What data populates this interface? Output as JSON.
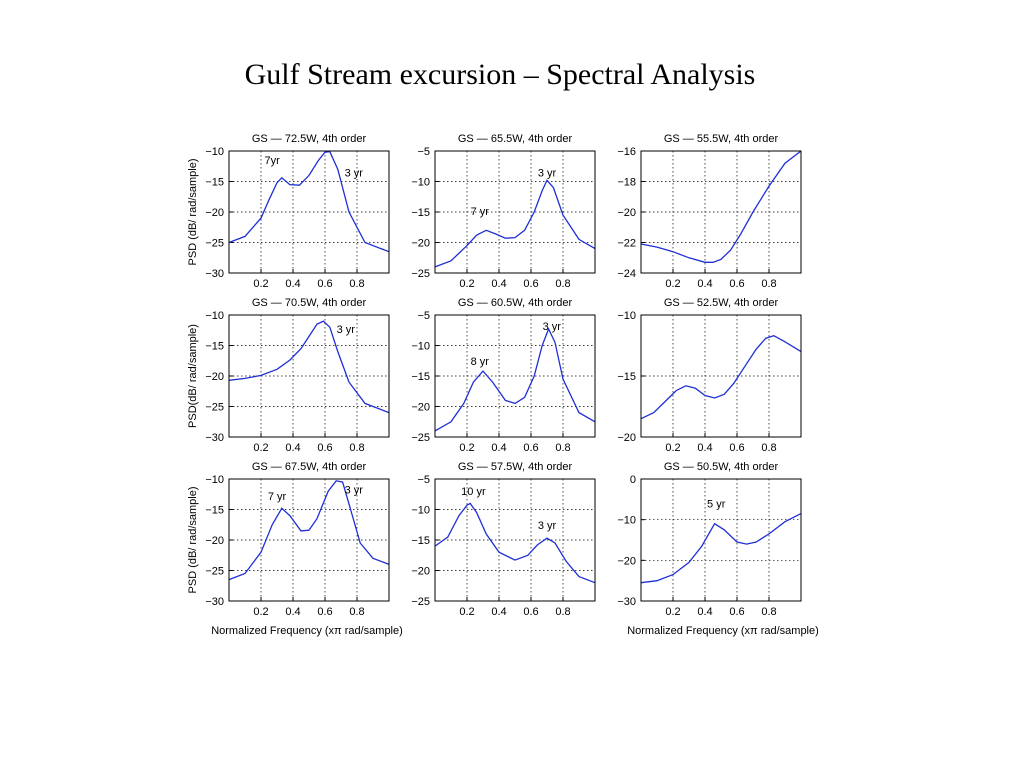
{
  "title": "Gulf Stream excursion – Spectral Analysis",
  "ylabels": [
    "PSD (dB/ rad/sample)",
    "PSD(dB/ rad/sample)",
    "PSD (dB/ rad/sample)"
  ],
  "xlabels": [
    "Normalized Frequency  (xπ rad/sample)",
    "Normalized Frequency  (xπ rad/sample)"
  ],
  "chart_data": [
    {
      "type": "line",
      "title": "GS — 72.5W, 4th order",
      "xlim": [
        0,
        1
      ],
      "ylim": [
        -30,
        -10
      ],
      "xticks": [
        0.2,
        0.4,
        0.6,
        0.8
      ],
      "xticklabels": [
        "0.2",
        "0.4",
        "0.6",
        "0.8"
      ],
      "yticks": [
        -30,
        -25,
        -20,
        -15,
        -10
      ],
      "yticklabels": [
        "−30",
        "−25",
        "−20",
        "−15",
        "−10"
      ],
      "series": [
        {
          "x": [
            0,
            0.1,
            0.2,
            0.25,
            0.3,
            0.33,
            0.38,
            0.44,
            0.5,
            0.56,
            0.6,
            0.63,
            0.68,
            0.75,
            0.85,
            1.0
          ],
          "y": [
            -25,
            -24,
            -21,
            -18,
            -15.2,
            -14.4,
            -15.5,
            -15.6,
            -14,
            -11.5,
            -10.2,
            -10.1,
            -13,
            -20,
            -25,
            -26.5
          ]
        }
      ],
      "annotations": [
        {
          "text": "7yr",
          "x": 0.27,
          "y": -11.5
        },
        {
          "text": "3 yr",
          "x": 0.78,
          "y": -13.5
        }
      ]
    },
    {
      "type": "line",
      "title": "GS — 65.5W, 4th order",
      "xlim": [
        0,
        1
      ],
      "ylim": [
        -25,
        -5
      ],
      "xticks": [
        0.2,
        0.4,
        0.6,
        0.8
      ],
      "xticklabels": [
        "0.2",
        "0.4",
        "0.6",
        "0.8"
      ],
      "yticks": [
        -25,
        -20,
        -15,
        -10,
        -5
      ],
      "yticklabels": [
        "−25",
        "−20",
        "−15",
        "−10",
        "−5"
      ],
      "series": [
        {
          "x": [
            0,
            0.1,
            0.2,
            0.26,
            0.32,
            0.38,
            0.44,
            0.5,
            0.56,
            0.62,
            0.67,
            0.7,
            0.74,
            0.8,
            0.9,
            1.0
          ],
          "y": [
            -24,
            -23,
            -20.5,
            -18.8,
            -18,
            -18.6,
            -19.3,
            -19.2,
            -18,
            -15,
            -11.5,
            -9.8,
            -11,
            -15.5,
            -19.5,
            -21
          ]
        }
      ],
      "annotations": [
        {
          "text": "7 yr",
          "x": 0.28,
          "y": -14.8
        },
        {
          "text": "3 yr",
          "x": 0.7,
          "y": -8.5
        }
      ]
    },
    {
      "type": "line",
      "title": "GS — 55.5W, 4th order",
      "xlim": [
        0,
        1
      ],
      "ylim": [
        -24,
        -16
      ],
      "xticks": [
        0.2,
        0.4,
        0.6,
        0.8
      ],
      "xticklabels": [
        "0.2",
        "0.4",
        "0.6",
        "0.8"
      ],
      "yticks": [
        -24,
        -22,
        -20,
        -18,
        -16
      ],
      "yticklabels": [
        "−24",
        "−22",
        "−20",
        "−18",
        "−16"
      ],
      "series": [
        {
          "x": [
            0,
            0.1,
            0.2,
            0.3,
            0.4,
            0.45,
            0.5,
            0.56,
            0.62,
            0.7,
            0.8,
            0.9,
            1.0
          ],
          "y": [
            -22.1,
            -22.3,
            -22.6,
            -23,
            -23.3,
            -23.3,
            -23.1,
            -22.5,
            -21.5,
            -20,
            -18.3,
            -16.8,
            -16
          ]
        }
      ],
      "annotations": []
    },
    {
      "type": "line",
      "title": "GS — 70.5W, 4th order",
      "xlim": [
        0,
        1
      ],
      "ylim": [
        -30,
        -10
      ],
      "xticks": [
        0.2,
        0.4,
        0.6,
        0.8
      ],
      "xticklabels": [
        "0.2",
        "0.4",
        "0.6",
        "0.8"
      ],
      "yticks": [
        -30,
        -25,
        -20,
        -15,
        -10
      ],
      "yticklabels": [
        "−30",
        "−25",
        "−20",
        "−15",
        "−10"
      ],
      "series": [
        {
          "x": [
            0,
            0.1,
            0.2,
            0.3,
            0.38,
            0.45,
            0.5,
            0.55,
            0.59,
            0.63,
            0.68,
            0.75,
            0.85,
            1.0
          ],
          "y": [
            -20.7,
            -20.4,
            -19.9,
            -18.9,
            -17.4,
            -15.5,
            -13.5,
            -11.5,
            -11,
            -12,
            -16,
            -21,
            -24.5,
            -26
          ]
        }
      ],
      "annotations": [
        {
          "text": "3 yr",
          "x": 0.73,
          "y": -12.3
        }
      ]
    },
    {
      "type": "line",
      "title": "GS — 60.5W, 4th order",
      "xlim": [
        0,
        1
      ],
      "ylim": [
        -25,
        -5
      ],
      "xticks": [
        0.2,
        0.4,
        0.6,
        0.8
      ],
      "xticklabels": [
        "0.2",
        "0.4",
        "0.6",
        "0.8"
      ],
      "yticks": [
        -25,
        -20,
        -15,
        -10,
        -5
      ],
      "yticklabels": [
        "−25",
        "−20",
        "−15",
        "−10",
        "−5"
      ],
      "series": [
        {
          "x": [
            0,
            0.1,
            0.18,
            0.24,
            0.3,
            0.36,
            0.44,
            0.5,
            0.56,
            0.62,
            0.67,
            0.71,
            0.75,
            0.8,
            0.9,
            1.0
          ],
          "y": [
            -24,
            -22.5,
            -19.5,
            -16,
            -14.2,
            -16,
            -19,
            -19.5,
            -18.5,
            -15,
            -10,
            -7.3,
            -9.5,
            -15.5,
            -21,
            -22.5
          ]
        }
      ],
      "annotations": [
        {
          "text": "8 yr",
          "x": 0.28,
          "y": -12.5
        },
        {
          "text": "3 yr",
          "x": 0.73,
          "y": -6.8
        }
      ]
    },
    {
      "type": "line",
      "title": "GS — 52.5W, 4th order",
      "xlim": [
        0,
        1
      ],
      "ylim": [
        -20,
        -10
      ],
      "xticks": [
        0.2,
        0.4,
        0.6,
        0.8
      ],
      "xticklabels": [
        "0.2",
        "0.4",
        "0.6",
        "0.8"
      ],
      "yticks": [
        -20,
        -15,
        -10
      ],
      "yticklabels": [
        "−20",
        "−15",
        "−10"
      ],
      "series": [
        {
          "x": [
            0,
            0.08,
            0.15,
            0.22,
            0.28,
            0.34,
            0.4,
            0.46,
            0.52,
            0.58,
            0.65,
            0.72,
            0.78,
            0.83,
            0.9,
            1.0
          ],
          "y": [
            -18.5,
            -18,
            -17.1,
            -16.2,
            -15.8,
            -16,
            -16.6,
            -16.8,
            -16.5,
            -15.6,
            -14.2,
            -12.8,
            -11.9,
            -11.7,
            -12.2,
            -13
          ]
        }
      ],
      "annotations": []
    },
    {
      "type": "line",
      "title": "GS — 67.5W, 4th order",
      "xlim": [
        0,
        1
      ],
      "ylim": [
        -30,
        -10
      ],
      "xticks": [
        0.2,
        0.4,
        0.6,
        0.8
      ],
      "xticklabels": [
        "0.2",
        "0.4",
        "0.6",
        "0.8"
      ],
      "yticks": [
        -30,
        -25,
        -20,
        -15,
        -10
      ],
      "yticklabels": [
        "−30",
        "−25",
        "−20",
        "−15",
        "−10"
      ],
      "series": [
        {
          "x": [
            0,
            0.1,
            0.2,
            0.27,
            0.33,
            0.38,
            0.45,
            0.5,
            0.55,
            0.62,
            0.67,
            0.71,
            0.76,
            0.82,
            0.9,
            1.0
          ],
          "y": [
            -26.5,
            -25.5,
            -22,
            -17.5,
            -14.8,
            -16,
            -18.5,
            -18.4,
            -16.5,
            -12,
            -10.3,
            -10.5,
            -15,
            -20.5,
            -23,
            -24
          ]
        }
      ],
      "annotations": [
        {
          "text": "7 yr",
          "x": 0.3,
          "y": -12.8
        },
        {
          "text": "3 yr",
          "x": 0.78,
          "y": -11.7
        }
      ]
    },
    {
      "type": "line",
      "title": "GS — 57.5W, 4th order",
      "xlim": [
        0,
        1
      ],
      "ylim": [
        -25,
        -5
      ],
      "xticks": [
        0.2,
        0.4,
        0.6,
        0.8
      ],
      "xticklabels": [
        "0.2",
        "0.4",
        "0.6",
        "0.8"
      ],
      "yticks": [
        -25,
        -20,
        -15,
        -10,
        -5
      ],
      "yticklabels": [
        "−25",
        "−20",
        "−15",
        "−10",
        "−5"
      ],
      "series": [
        {
          "x": [
            0,
            0.08,
            0.15,
            0.2,
            0.22,
            0.26,
            0.32,
            0.4,
            0.5,
            0.58,
            0.64,
            0.7,
            0.75,
            0.82,
            0.9,
            1.0
          ],
          "y": [
            -16,
            -14.5,
            -11,
            -9.3,
            -9,
            -10.5,
            -14,
            -17,
            -18.3,
            -17.5,
            -15.8,
            -14.7,
            -15.5,
            -18.5,
            -21,
            -22
          ]
        }
      ],
      "annotations": [
        {
          "text": "10 yr",
          "x": 0.24,
          "y": -7
        },
        {
          "text": "3 yr",
          "x": 0.7,
          "y": -12.5
        }
      ]
    },
    {
      "type": "line",
      "title": "GS — 50.5W, 4th order",
      "xlim": [
        0,
        1
      ],
      "ylim": [
        -30,
        0
      ],
      "xticks": [
        0.2,
        0.4,
        0.6,
        0.8
      ],
      "xticklabels": [
        "0.2",
        "0.4",
        "0.6",
        "0.8"
      ],
      "yticks": [
        -30,
        -20,
        -10,
        0
      ],
      "yticklabels": [
        "−30",
        "−20",
        "−10",
        "0"
      ],
      "series": [
        {
          "x": [
            0,
            0.1,
            0.2,
            0.3,
            0.38,
            0.46,
            0.52,
            0.6,
            0.66,
            0.72,
            0.8,
            0.9,
            1.0
          ],
          "y": [
            -25.5,
            -25,
            -23.5,
            -20.5,
            -16.5,
            -11,
            -12.5,
            -15.5,
            -16,
            -15.5,
            -13.5,
            -10.5,
            -8.5
          ]
        }
      ],
      "annotations": [
        {
          "text": "5 yr",
          "x": 0.47,
          "y": -6
        }
      ]
    }
  ]
}
